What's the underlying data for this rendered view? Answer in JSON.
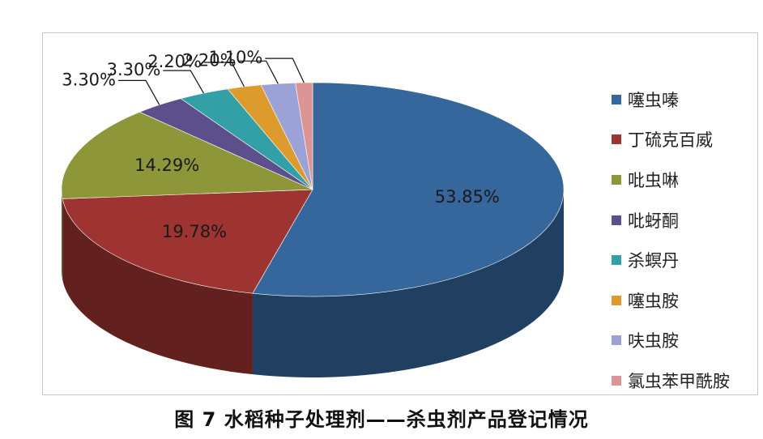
{
  "chart_data": {
    "type": "pie",
    "subtype": "3d-pie",
    "title": "",
    "legend_position": "right",
    "categories": [
      "噻虫嗪",
      "丁硫克百威",
      "吡虫啉",
      "吡蚜酮",
      "杀螟丹",
      "噻虫胺",
      "呋虫胺",
      "氯虫苯甲酰胺"
    ],
    "values": [
      53.85,
      19.78,
      14.29,
      3.3,
      3.3,
      2.2,
      2.2,
      1.1
    ],
    "labels": [
      "53.85%",
      "19.78%",
      "14.29%",
      "3.30%",
      "3.30%",
      "2.20%",
      "2.20%",
      "1.10%"
    ],
    "colors": [
      "#35669c",
      "#9e3431",
      "#8d973a",
      "#5d4f8c",
      "#32a0a6",
      "#dd9b2e",
      "#9ba3d6",
      "#dc9494"
    ]
  },
  "caption": "图 7  水稻种子处理剂——杀虫剂产品登记情况"
}
